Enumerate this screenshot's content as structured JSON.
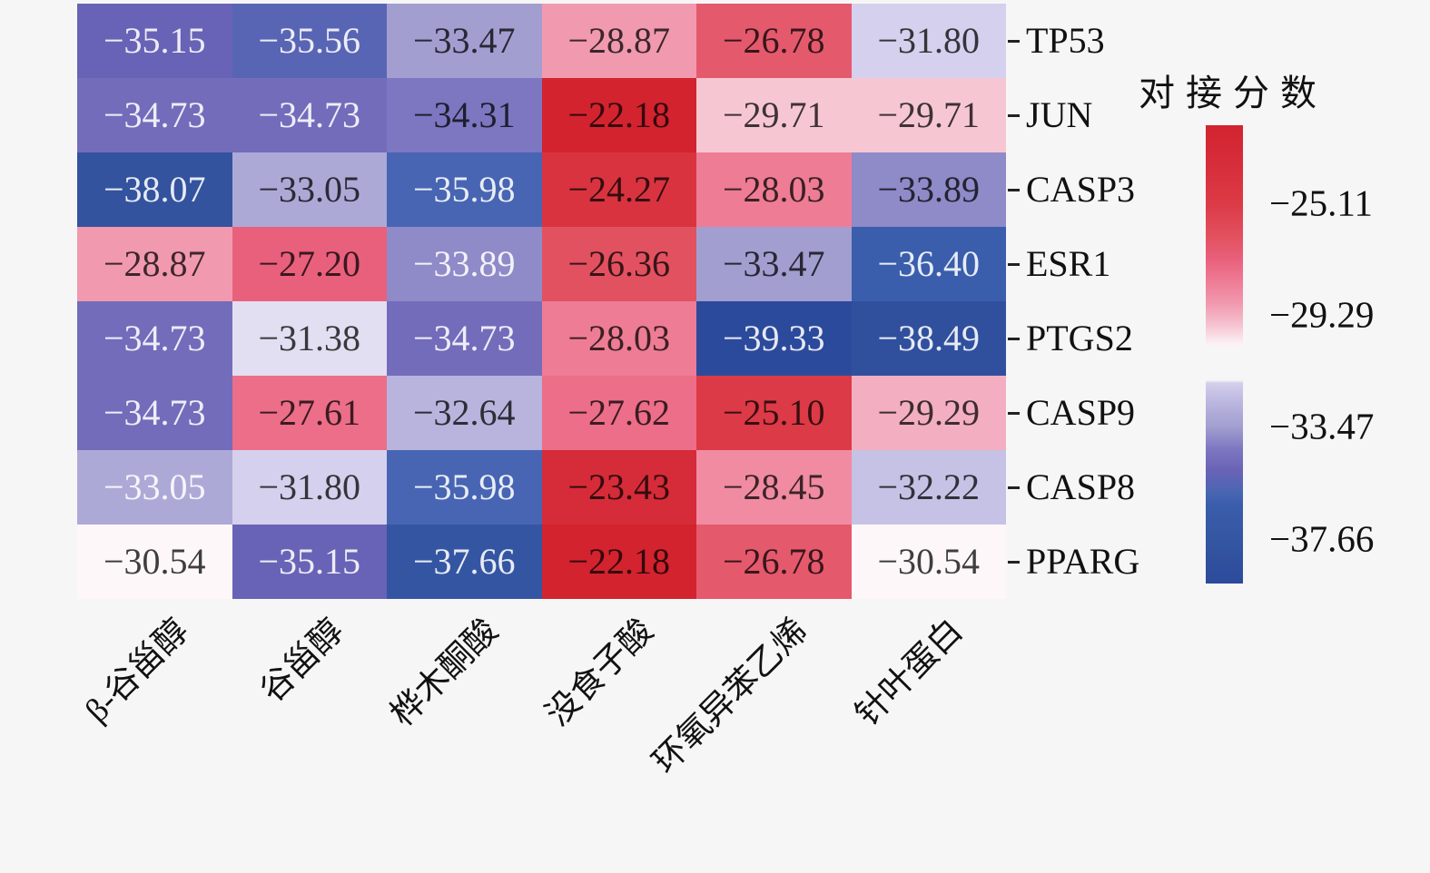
{
  "figure": {
    "background": "#f7f6f7"
  },
  "chart_data": {
    "type": "heatmap",
    "title": "",
    "x_categories": [
      "β-谷甾醇",
      "谷甾醇",
      "桦木酮酸",
      "没食子酸",
      "环氧异苯乙烯",
      "针叶蛋白"
    ],
    "y_categories": [
      "TP53",
      "JUN",
      "CASP3",
      "ESR1",
      "PTGS2",
      "CASP9",
      "CASP8",
      "PPARG"
    ],
    "values": [
      [
        -35.15,
        -35.56,
        -33.47,
        -28.87,
        -26.78,
        -31.8
      ],
      [
        -34.73,
        -34.73,
        -34.31,
        -22.18,
        -29.71,
        -29.71
      ],
      [
        -38.07,
        -33.05,
        -35.98,
        -24.27,
        -28.03,
        -33.89
      ],
      [
        -28.87,
        -27.2,
        -33.89,
        -26.36,
        -33.47,
        -36.4
      ],
      [
        -34.73,
        -31.38,
        -34.73,
        -28.03,
        -39.33,
        -38.49
      ],
      [
        -34.73,
        -27.61,
        -32.64,
        -27.62,
        -25.1,
        -29.29
      ],
      [
        -33.05,
        -31.8,
        -35.98,
        -23.43,
        -28.45,
        -32.22
      ],
      [
        -30.54,
        -35.15,
        -37.66,
        -22.18,
        -26.78,
        -30.54
      ]
    ],
    "cell_text_tones": [
      [
        "L",
        "L",
        "D",
        "D",
        "D",
        "D"
      ],
      [
        "L",
        "L",
        "D",
        "D",
        "D",
        "D"
      ],
      [
        "L",
        "D",
        "L",
        "D",
        "D",
        "D"
      ],
      [
        "D",
        "D",
        "L",
        "D",
        "D",
        "L"
      ],
      [
        "L",
        "D",
        "L",
        "D",
        "L",
        "L"
      ],
      [
        "L",
        "D",
        "D",
        "D",
        "D",
        "D"
      ],
      [
        "L",
        "D",
        "L",
        "D",
        "D",
        "D"
      ],
      [
        "D",
        "L",
        "L",
        "D",
        "D",
        "D"
      ]
    ],
    "annotations": true,
    "grid": false,
    "vmax": -22.18,
    "vmin": -39.33,
    "colorbar": {
      "title": "对接分数",
      "orientation": "vertical",
      "tick_labels": [
        "−25.11",
        "−29.29",
        "−33.47",
        "−37.66"
      ],
      "tick_values": [
        -25.11,
        -29.29,
        -33.47,
        -37.66
      ],
      "gap_between": [
        -30.45,
        -31.75
      ]
    },
    "color_scale_stops": [
      [
        -39.33,
        "#2c4a9c"
      ],
      [
        -38.0,
        "#33549f"
      ],
      [
        -36.4,
        "#3a5dac"
      ],
      [
        -35.9,
        "#4a66b3"
      ],
      [
        -35.1,
        "#6a63b6"
      ],
      [
        -34.3,
        "#7d77c1"
      ],
      [
        -33.5,
        "#a19dcf"
      ],
      [
        -32.6,
        "#b9b5de"
      ],
      [
        -31.8,
        "#d5d0ed"
      ],
      [
        -31.1,
        "#ece9f5"
      ],
      [
        -30.75,
        "#ffffff"
      ],
      [
        -30.3,
        "#fbeef2"
      ],
      [
        -29.7,
        "#f6c6d2"
      ],
      [
        -28.9,
        "#f19ab0"
      ],
      [
        -28.0,
        "#ee7b94"
      ],
      [
        -27.2,
        "#e9607c"
      ],
      [
        -26.4,
        "#e25260"
      ],
      [
        -25.1,
        "#dc3a46"
      ],
      [
        -23.4,
        "#d62b39"
      ],
      [
        -22.18,
        "#d2232f"
      ]
    ]
  }
}
